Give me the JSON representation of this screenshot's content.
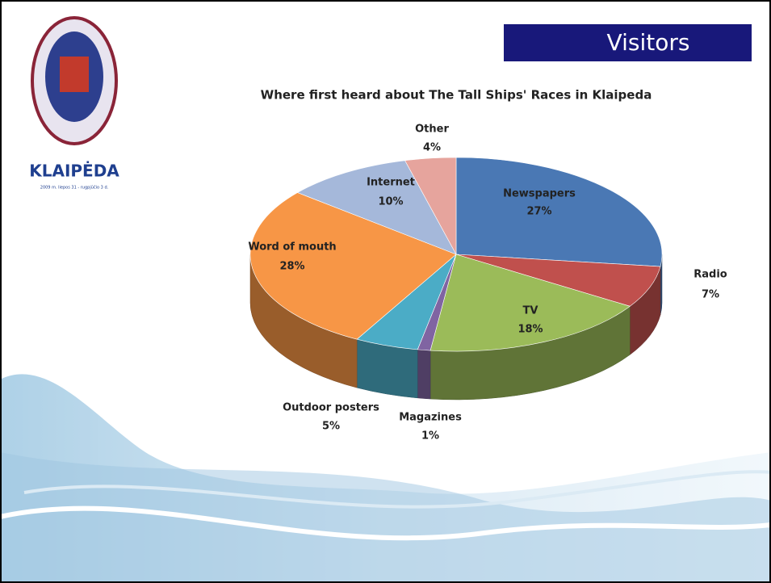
{
  "slide": {
    "heading": "Visitors",
    "logo_text": "KLAIPĖDA",
    "logo_subtext": "2009 m. liepos 31 - rugpjūčio 3 d."
  },
  "chart_data": {
    "type": "pie",
    "title": "Where first heard about The Tall Ships' Races in Klaipeda",
    "categories": [
      "Newspapers",
      "Radio",
      "TV",
      "Magazines",
      "Outdoor posters",
      "Word of mouth",
      "Internet",
      "Other"
    ],
    "values": [
      27,
      7,
      18,
      1,
      5,
      28,
      10,
      4
    ],
    "value_labels": [
      "27%",
      "7%",
      "18%",
      "1%",
      "5%",
      "28%",
      "10%",
      "4%"
    ],
    "colors": [
      "#4a78b4",
      "#c0504d",
      "#9bbb59",
      "#8064a2",
      "#4bacc6",
      "#f79646",
      "#a5b8da",
      "#e6a49d"
    ]
  }
}
